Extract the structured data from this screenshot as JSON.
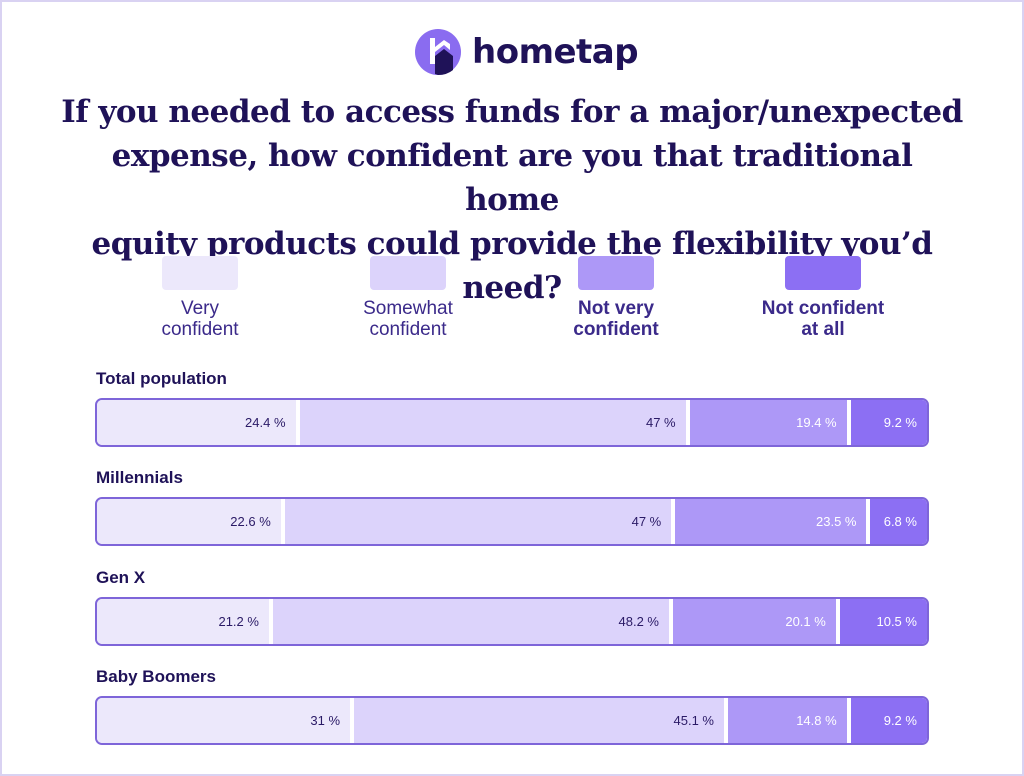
{
  "brand": {
    "name": "hometap",
    "mark_color": "#8a6cf0",
    "text_color": "#1f1258"
  },
  "title_lines": [
    "If you needed to access funds for a major/unexpected",
    "expense, how confident are you that traditional home",
    "equity products could provide the flexibility you’d need?"
  ],
  "chart_data": {
    "type": "bar",
    "stacked": true,
    "orientation": "horizontal",
    "normalized_percent": true,
    "legend_position": "top",
    "categories": [
      "Total population",
      "Millennials",
      "Gen X",
      "Baby Boomers"
    ],
    "series": [
      {
        "name_lines": [
          "Very",
          "confident"
        ],
        "color": "#ece8fb",
        "values": [
          24.4,
          22.6,
          21.2,
          31
        ]
      },
      {
        "name_lines": [
          "Somewhat",
          "confident"
        ],
        "color": "#dcd3fb",
        "values": [
          47,
          47,
          48.2,
          45.1
        ]
      },
      {
        "name_lines": [
          "Not very",
          "confident"
        ],
        "color": "#ad98f7",
        "values": [
          19.4,
          23.5,
          20.1,
          14.8
        ]
      },
      {
        "name_lines": [
          "Not confident",
          "at all"
        ],
        "color": "#8c6ff3",
        "values": [
          9.2,
          6.8,
          10.5,
          9.2
        ]
      }
    ],
    "value_labels": [
      [
        "24.4 %",
        "47 %",
        "19.4 %",
        "9.2 %"
      ],
      [
        "22.6 %",
        "47 %",
        "23.5 %",
        "6.8 %"
      ],
      [
        "21.2 %",
        "48.2 %",
        "20.1 %",
        "10.5 %"
      ],
      [
        "31 %",
        "45.1 %",
        "14.8 %",
        "9.2 %"
      ]
    ]
  }
}
